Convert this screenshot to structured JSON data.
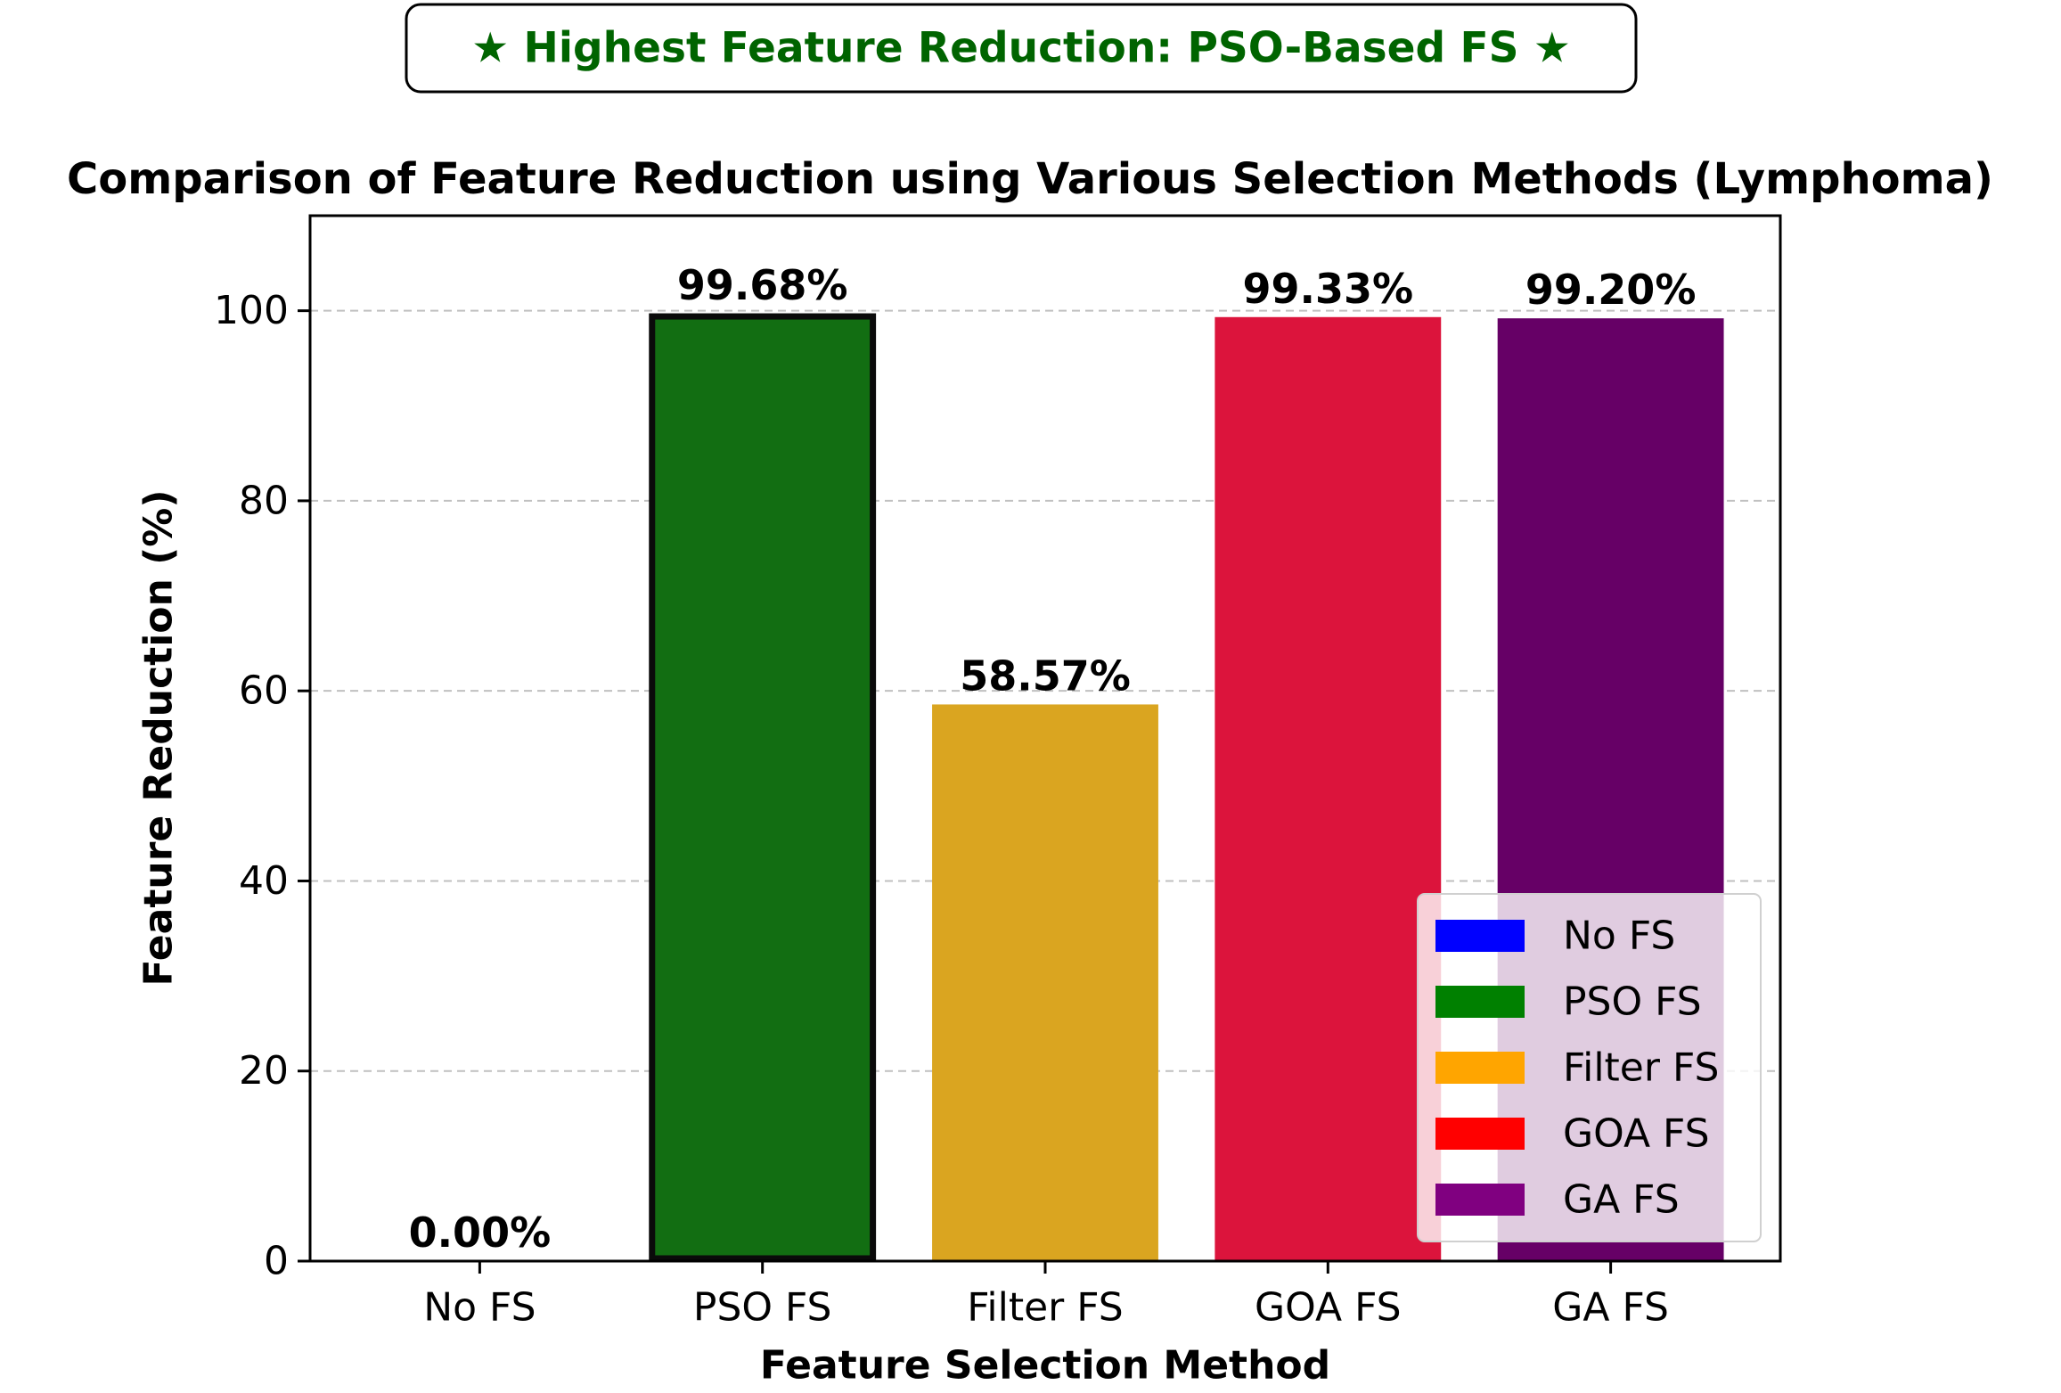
{
  "banner": {
    "text": "★ Highest Feature Reduction: PSO-Based FS ★",
    "color": "#006400"
  },
  "chart_data": {
    "type": "bar",
    "title": "Comparison of Feature Reduction using Various Selection Methods (Lymphoma)",
    "xlabel": "Feature Selection Method",
    "ylabel": "Feature Reduction (%)",
    "categories": [
      "No FS",
      "PSO FS",
      "Filter FS",
      "GOA FS",
      "GA FS"
    ],
    "values": [
      0.0,
      99.68,
      58.57,
      99.33,
      99.2
    ],
    "value_labels": [
      "0.00%",
      "99.68%",
      "58.57%",
      "99.33%",
      "99.20%"
    ],
    "colors": [
      "#0000ff",
      "#006400",
      "#daa520",
      "#dc143c",
      "#660066"
    ],
    "highlighted": "PSO FS",
    "ylim": [
      0,
      110
    ],
    "yticks": [
      0,
      20,
      40,
      60,
      80,
      100
    ],
    "grid": "y-dashed",
    "legend": {
      "placement": "lower-right",
      "entries": [
        {
          "label": "No FS",
          "color": "#0000ff"
        },
        {
          "label": "PSO FS",
          "color": "#008000"
        },
        {
          "label": "Filter FS",
          "color": "#ffa500"
        },
        {
          "label": "GOA FS",
          "color": "#ff0000"
        },
        {
          "label": "GA FS",
          "color": "#800080"
        }
      ]
    }
  }
}
